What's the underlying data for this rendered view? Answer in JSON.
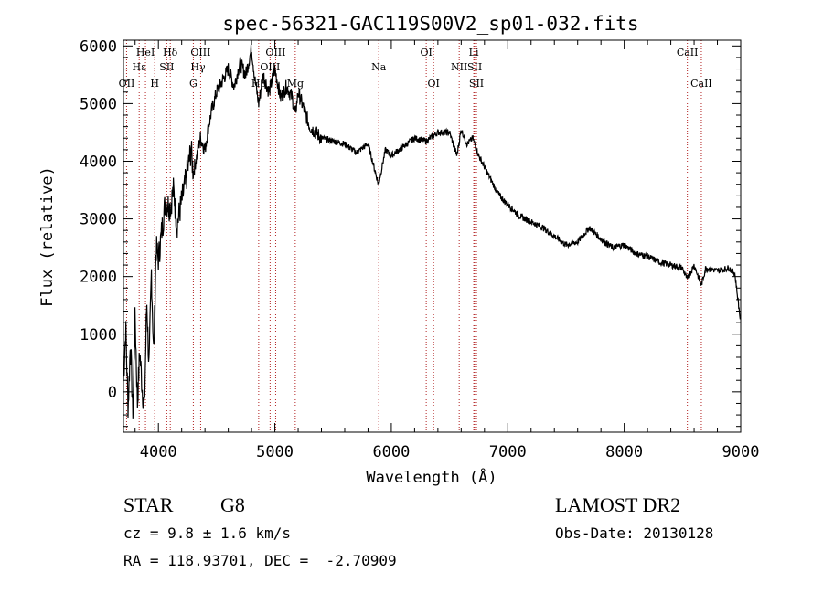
{
  "chart_data": {
    "type": "line",
    "title": "spec-56321-GAC119S00V2_sp01-032.fits",
    "xlabel": "Wavelength (Å)",
    "ylabel": "Flux (relative)",
    "xlim": [
      3700,
      9000
    ],
    "ylim": [
      -700,
      6100
    ],
    "x_ticks": [
      4000,
      5000,
      6000,
      7000,
      8000,
      9000
    ],
    "y_ticks": [
      0,
      1000,
      2000,
      3000,
      4000,
      5000,
      6000
    ],
    "x_minor_step": 200,
    "y_minor_step": 200,
    "line_color": "#000000",
    "marker_color": "#b22222",
    "series": [
      {
        "x": [
          3700,
          3720,
          3740,
          3760,
          3780,
          3800,
          3820,
          3840,
          3860,
          3880,
          3900,
          3920,
          3940,
          3960,
          3980,
          4000,
          4030,
          4060,
          4100,
          4130,
          4160,
          4200,
          4240,
          4280,
          4300,
          4330,
          4360,
          4400,
          4430,
          4460,
          4500,
          4550,
          4600,
          4650,
          4700,
          4750,
          4800,
          4830,
          4861,
          4900,
          4950,
          5000,
          5050,
          5100,
          5150,
          5175,
          5200,
          5250,
          5300,
          5400,
          5500,
          5600,
          5700,
          5800,
          5890,
          5950,
          6000,
          6100,
          6200,
          6300,
          6400,
          6500,
          6563,
          6600,
          6650,
          6700,
          6750,
          6800,
          6850,
          6900,
          6950,
          7000,
          7100,
          7200,
          7300,
          7400,
          7500,
          7600,
          7700,
          7800,
          7900,
          8000,
          8100,
          8200,
          8300,
          8400,
          8498,
          8542,
          8600,
          8662,
          8700,
          8800,
          8900,
          8950,
          9000
        ],
        "y": [
          200,
          1100,
          -300,
          900,
          -400,
          1300,
          -200,
          700,
          100,
          -300,
          1600,
          400,
          2100,
          600,
          2500,
          2300,
          2800,
          3300,
          3200,
          3500,
          2900,
          3300,
          3700,
          4200,
          3800,
          4100,
          4400,
          4200,
          4600,
          4900,
          5200,
          5400,
          5600,
          5300,
          5700,
          5500,
          5950,
          5400,
          5000,
          5500,
          5200,
          5600,
          5100,
          5300,
          5100,
          4800,
          5200,
          4900,
          4600,
          4400,
          4350,
          4300,
          4150,
          4300,
          3600,
          4200,
          4100,
          4250,
          4400,
          4350,
          4500,
          4500,
          4100,
          4550,
          4300,
          4400,
          4100,
          3900,
          3700,
          3500,
          3350,
          3250,
          3050,
          2950,
          2850,
          2700,
          2550,
          2600,
          2850,
          2650,
          2500,
          2550,
          2400,
          2350,
          2250,
          2200,
          2150,
          1950,
          2200,
          1850,
          2150,
          2100,
          2150,
          2050,
          1200
        ]
      }
    ]
  },
  "line_markers": [
    {
      "label": "OII",
      "wavelength": 3727,
      "row": 3
    },
    {
      "label": "Hε",
      "wavelength": 3835,
      "row": 1
    },
    {
      "label": "HeI",
      "wavelength": 3889,
      "row": 0
    },
    {
      "label": "H",
      "wavelength": 3968,
      "row": 2
    },
    {
      "label": "SII",
      "wavelength": 4072,
      "row": 1
    },
    {
      "label": "Hδ",
      "wavelength": 4102,
      "row": 0
    },
    {
      "label": "G",
      "wavelength": 4300,
      "row": 2
    },
    {
      "label": "Hγ",
      "wavelength": 4340,
      "row": 1
    },
    {
      "label": "OIII",
      "wavelength": 4363,
      "row": 0
    },
    {
      "label": "Hβ",
      "wavelength": 4861,
      "row": 2
    },
    {
      "label": "OIII",
      "wavelength": 4959,
      "row": 1
    },
    {
      "label": "OIII",
      "wavelength": 5007,
      "row": 0
    },
    {
      "label": "Mg",
      "wavelength": 5175,
      "row": 2
    },
    {
      "label": "Na",
      "wavelength": 5892,
      "row": 1
    },
    {
      "label": "OI",
      "wavelength": 6300,
      "row": 0
    },
    {
      "label": "OI",
      "wavelength": 6363,
      "row": 2
    },
    {
      "label": "NII",
      "wavelength": 6583,
      "row": 1
    },
    {
      "label": "Li",
      "wavelength": 6708,
      "row": 0
    },
    {
      "label": "SII",
      "wavelength": 6716,
      "row": 1
    },
    {
      "label": "SII",
      "wavelength": 6731,
      "row": 2
    },
    {
      "label": "CaII",
      "wavelength": 8542,
      "row": 0
    },
    {
      "label": "CaII",
      "wavelength": 8662,
      "row": 2
    }
  ],
  "info": {
    "object_class": "STAR",
    "subclass": "G8",
    "survey": "LAMOST DR2",
    "cz": "cz = 9.8 ± 1.6 km/s",
    "obs_date": "Obs-Date: 20130128",
    "coords": "RA = 118.93701, DEC =  -2.70909"
  }
}
